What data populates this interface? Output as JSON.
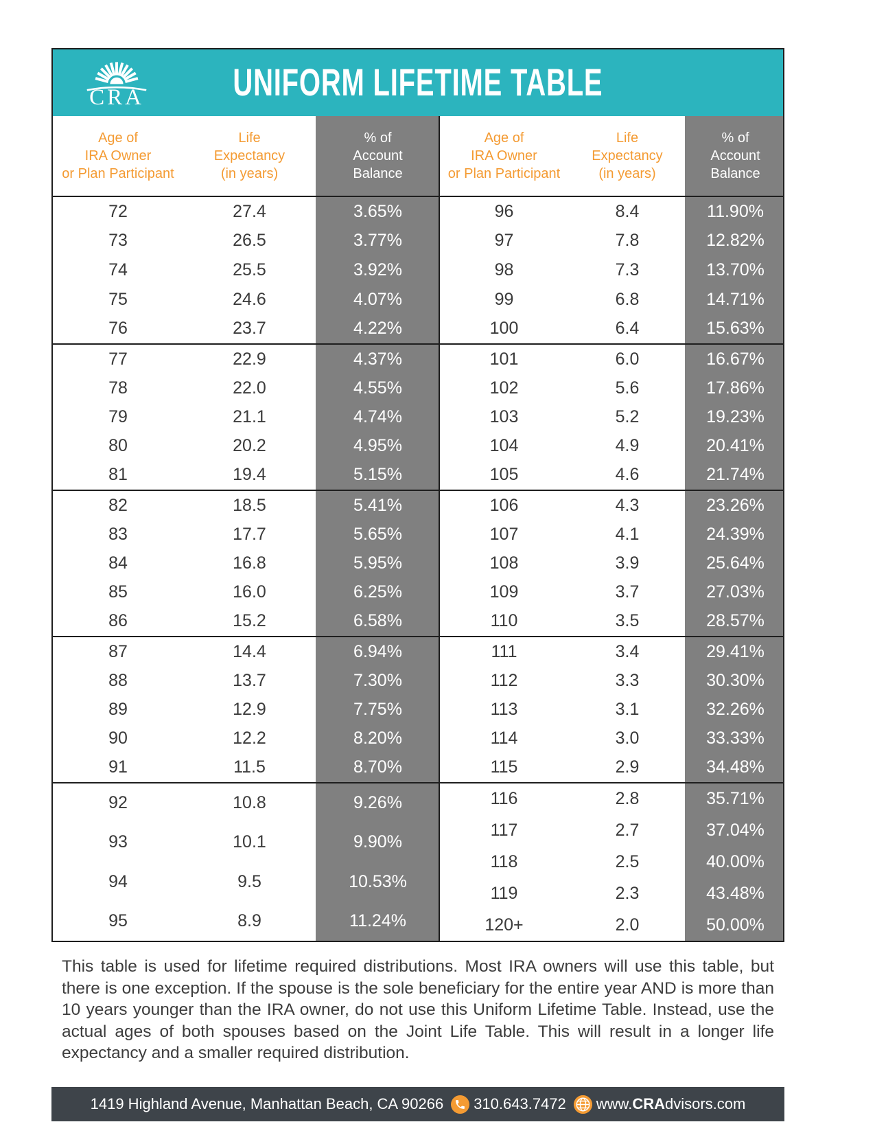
{
  "logo": {
    "text": "CRA",
    "icon": "sunburst-icon"
  },
  "title": "UNIFORM LIFETIME TABLE",
  "colors": {
    "teal": "#2cb4be",
    "orange": "#f49b33",
    "column_gray": "#808080",
    "footer_bar": "#3e444a"
  },
  "table": {
    "header": {
      "age": [
        "Age of",
        "IRA Owner",
        "or Plan Participant"
      ],
      "life": [
        "Life",
        "Expectancy",
        "(in years)"
      ],
      "pct": [
        "% of",
        "Account",
        "Balance"
      ]
    },
    "bands": [
      {
        "left": [
          [
            "72",
            "27.4",
            "3.65%"
          ],
          [
            "73",
            "26.5",
            "3.77%"
          ],
          [
            "74",
            "25.5",
            "3.92%"
          ],
          [
            "75",
            "24.6",
            "4.07%"
          ],
          [
            "76",
            "23.7",
            "4.22%"
          ]
        ],
        "right": [
          [
            "96",
            "8.4",
            "11.90%"
          ],
          [
            "97",
            "7.8",
            "12.82%"
          ],
          [
            "98",
            "7.3",
            "13.70%"
          ],
          [
            "99",
            "6.8",
            "14.71%"
          ],
          [
            "100",
            "6.4",
            "15.63%"
          ]
        ]
      },
      {
        "left": [
          [
            "77",
            "22.9",
            "4.37%"
          ],
          [
            "78",
            "22.0",
            "4.55%"
          ],
          [
            "79",
            "21.1",
            "4.74%"
          ],
          [
            "80",
            "20.2",
            "4.95%"
          ],
          [
            "81",
            "19.4",
            "5.15%"
          ]
        ],
        "right": [
          [
            "101",
            "6.0",
            "16.67%"
          ],
          [
            "102",
            "5.6",
            "17.86%"
          ],
          [
            "103",
            "5.2",
            "19.23%"
          ],
          [
            "104",
            "4.9",
            "20.41%"
          ],
          [
            "105",
            "4.6",
            "21.74%"
          ]
        ]
      },
      {
        "left": [
          [
            "82",
            "18.5",
            "5.41%"
          ],
          [
            "83",
            "17.7",
            "5.65%"
          ],
          [
            "84",
            "16.8",
            "5.95%"
          ],
          [
            "85",
            "16.0",
            "6.25%"
          ],
          [
            "86",
            "15.2",
            "6.58%"
          ]
        ],
        "right": [
          [
            "106",
            "4.3",
            "23.26%"
          ],
          [
            "107",
            "4.1",
            "24.39%"
          ],
          [
            "108",
            "3.9",
            "25.64%"
          ],
          [
            "109",
            "3.7",
            "27.03%"
          ],
          [
            "110",
            "3.5",
            "28.57%"
          ]
        ]
      },
      {
        "left": [
          [
            "87",
            "14.4",
            "6.94%"
          ],
          [
            "88",
            "13.7",
            "7.30%"
          ],
          [
            "89",
            "12.9",
            "7.75%"
          ],
          [
            "90",
            "12.2",
            "8.20%"
          ],
          [
            "91",
            "11.5",
            "8.70%"
          ]
        ],
        "right": [
          [
            "111",
            "3.4",
            "29.41%"
          ],
          [
            "112",
            "3.3",
            "30.30%"
          ],
          [
            "113",
            "3.1",
            "32.26%"
          ],
          [
            "114",
            "3.0",
            "33.33%"
          ],
          [
            "115",
            "2.9",
            "34.48%"
          ]
        ]
      },
      {
        "left": [
          [
            "92",
            "10.8",
            "9.26%"
          ],
          [
            "93",
            "10.1",
            "9.90%"
          ],
          [
            "94",
            "9.5",
            "10.53%"
          ],
          [
            "95",
            "8.9",
            "11.24%"
          ]
        ],
        "right": [
          [
            "116",
            "2.8",
            "35.71%"
          ],
          [
            "117",
            "2.7",
            "37.04%"
          ],
          [
            "118",
            "2.5",
            "40.00%"
          ],
          [
            "119",
            "2.3",
            "43.48%"
          ],
          [
            "120+",
            "2.0",
            "50.00%"
          ]
        ]
      }
    ]
  },
  "note": "This table is used for lifetime required distributions. Most IRA owners will use this table, but there is one exception. If the spouse is the sole beneficiary for the entire year AND is more than 10 years younger than the IRA owner, do not use this Uniform Lifetime Table. Instead, use the actual ages of both spouses based on the Joint Life Table. This will result in a longer life expectancy and a smaller required distribution.",
  "footer": {
    "address": "1419 Highland Avenue, Manhattan Beach, CA 90266",
    "phone_icon": "phone-icon",
    "phone": "310.643.7472",
    "globe_icon": "globe-icon",
    "web_www": "www.",
    "web_bold": "CRA",
    "web_rest": "dvisors.com"
  }
}
